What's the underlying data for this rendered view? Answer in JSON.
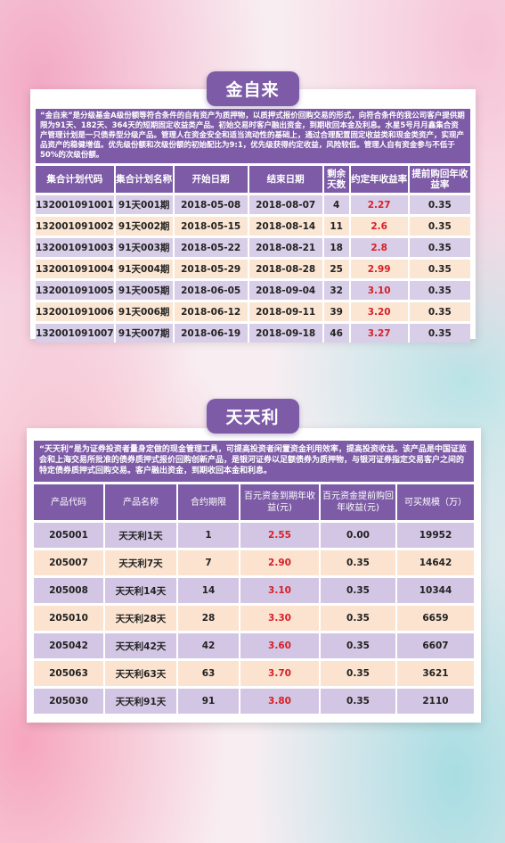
{
  "section1": {
    "title": "金自来",
    "intro": "“金自来”是分级基金A级份额等符合条件的自有资产为质押物，以质押式报价回购交易的形式，向符合条件的我公司客户提供期限为91天、182天、364天的短期固定收益类产品。初始交易时客户融出资金，到期收回本金及利息。水星5号月月鑫集合资产管理计划是一只债券型分级产品。管理人在资金安全和适当流动性的基础上，通过合理配置固定收益类和现金类资产，实现产品资产的稳健增值。优先级份额和次级份额的初始配比为9:1，优先级获得约定收益，风险较低。管理人自有资金参与不低于50%的次级份额。",
    "headers": [
      "集合计划代码",
      "集合计划名称",
      "开始日期",
      "结束日期",
      "剩余天数",
      "约定年收益率",
      "提前购回年收益率"
    ],
    "rows": [
      [
        "132001091001",
        "91天001期",
        "2018-05-08",
        "2018-08-07",
        "4",
        "2.27",
        "0.35"
      ],
      [
        "132001091002",
        "91天002期",
        "2018-05-15",
        "2018-08-14",
        "11",
        "2.6",
        "0.35"
      ],
      [
        "132001091003",
        "91天003期",
        "2018-05-22",
        "2018-08-21",
        "18",
        "2.8",
        "0.35"
      ],
      [
        "132001091004",
        "91天004期",
        "2018-05-29",
        "2018-08-28",
        "25",
        "2.99",
        "0.35"
      ],
      [
        "132001091005",
        "91天005期",
        "2018-06-05",
        "2018-09-04",
        "32",
        "3.10",
        "0.35"
      ],
      [
        "132001091006",
        "91天006期",
        "2018-06-12",
        "2018-09-11",
        "39",
        "3.20",
        "0.35"
      ],
      [
        "132001091007",
        "91天007期",
        "2018-06-19",
        "2018-09-18",
        "46",
        "3.27",
        "0.35"
      ]
    ]
  },
  "section2": {
    "title": "天天利",
    "intro": "“天天利”是为证券投资者量身定做的现金管理工具，可提高投资者闲置资金利用效率，提高投资收益。该产品是中国证监会和上海交易所批准的债券质押式报价回购创新产品，是银河证券以足额债券为质押物，与银河证券指定交易客户之间的特定债券质押式回购交易。客户融出资金，到期收回本金和利息。",
    "headers": [
      "产品代码",
      "产品名称",
      "合约期限",
      "百元资金到期年收益(元)",
      "百元资金提前购回年收益(元)",
      "可买规模（万）"
    ],
    "rows": [
      [
        "205001",
        "天天利1天",
        "1",
        "2.55",
        "0.00",
        "19952"
      ],
      [
        "205007",
        "天天利7天",
        "7",
        "2.90",
        "0.35",
        "14642"
      ],
      [
        "205008",
        "天天利14天",
        "14",
        "3.10",
        "0.35",
        "10344"
      ],
      [
        "205010",
        "天天利28天",
        "28",
        "3.30",
        "0.35",
        "6659"
      ],
      [
        "205042",
        "天天利42天",
        "42",
        "3.60",
        "0.35",
        "6607"
      ],
      [
        "205063",
        "天天利63天",
        "63",
        "3.70",
        "0.35",
        "3621"
      ],
      [
        "205030",
        "天天利91天",
        "91",
        "3.80",
        "0.35",
        "2110"
      ]
    ]
  },
  "colors": {
    "accent": "#7d5ba6",
    "row_purple": "#d9cee8",
    "row_peach": "#fbe6d3",
    "highlight": "#d81f26"
  }
}
